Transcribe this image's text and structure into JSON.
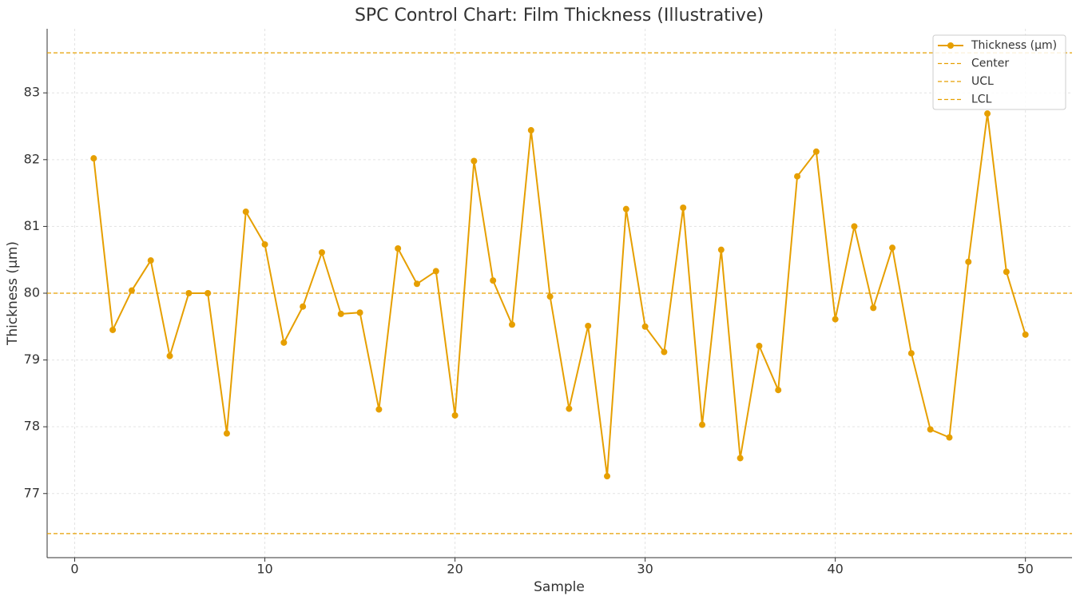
{
  "chart_data": {
    "type": "line",
    "title": "SPC Control Chart: Film Thickness (Illustrative)",
    "x_label": "Sample",
    "y_label": "Thickness (µm)",
    "x": [
      1,
      2,
      3,
      4,
      5,
      6,
      7,
      8,
      9,
      10,
      11,
      12,
      13,
      14,
      15,
      16,
      17,
      18,
      19,
      20,
      21,
      22,
      23,
      24,
      25,
      26,
      27,
      28,
      29,
      30,
      31,
      32,
      33,
      34,
      35,
      36,
      37,
      38,
      39,
      40,
      41,
      42,
      43,
      44,
      45,
      46,
      47,
      48,
      49,
      50
    ],
    "series": [
      {
        "name": "Thickness (µm)",
        "color": "#e69f00",
        "values": [
          82.02,
          79.45,
          80.04,
          80.49,
          79.06,
          80.0,
          80.0,
          77.9,
          81.22,
          80.73,
          79.26,
          79.8,
          80.61,
          79.69,
          79.71,
          78.26,
          80.67,
          80.14,
          80.33,
          78.17,
          81.98,
          80.19,
          79.53,
          82.44,
          79.95,
          78.27,
          79.51,
          77.26,
          81.26,
          79.5,
          79.12,
          81.28,
          78.03,
          80.65,
          77.53,
          79.21,
          78.55,
          81.75,
          82.12,
          79.61,
          81.0,
          79.78,
          80.68,
          79.1,
          77.96,
          77.84,
          80.47,
          82.69,
          80.32,
          79.38
        ]
      }
    ],
    "hlines": [
      {
        "name": "Center",
        "value": 80,
        "color": "#e69f00"
      },
      {
        "name": "UCL",
        "value": 83.6,
        "color": "#e69f00"
      },
      {
        "name": "LCL",
        "value": 76.4,
        "color": "#e69f00"
      }
    ],
    "xlim": [
      -1.45,
      52.45
    ],
    "xticks": [
      0,
      10,
      20,
      30,
      40,
      50
    ],
    "ylim": [
      76.04,
      83.96
    ],
    "yticks": [
      77,
      78,
      79,
      80,
      81,
      82,
      83
    ],
    "grid": true,
    "legend": "upper right"
  }
}
